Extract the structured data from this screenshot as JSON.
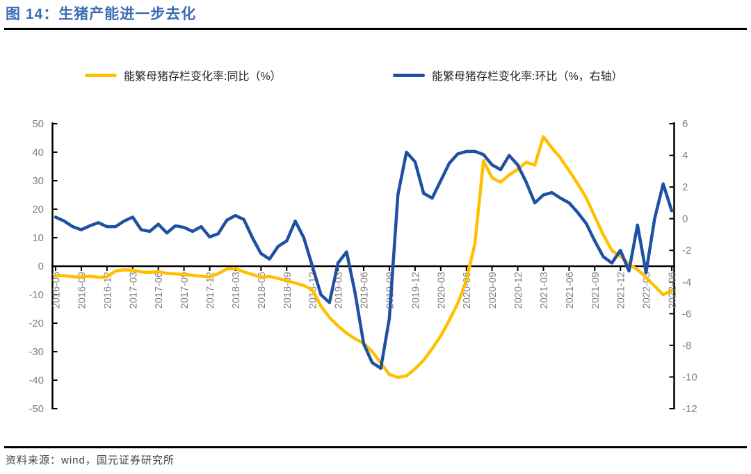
{
  "header": {
    "title": "图 14：生猪产能进一步去化"
  },
  "footer": {
    "source": "资料来源：wind，国元证券研究所"
  },
  "colors": {
    "title_blue": "#3C6CB4",
    "axis_text": "#7F7F7F",
    "axis_line": "#000000",
    "legend_text": "#262626"
  },
  "chart_data": {
    "type": "line",
    "title": "生猪产能进一步去化",
    "grid": false,
    "legend_position": "top",
    "x_months": [
      "2016-06",
      "2016-07",
      "2016-08",
      "2016-09",
      "2016-10",
      "2016-11",
      "2016-12",
      "2017-01",
      "2017-02",
      "2017-03",
      "2017-04",
      "2017-05",
      "2017-06",
      "2017-07",
      "2017-08",
      "2017-09",
      "2017-10",
      "2017-11",
      "2017-12",
      "2018-01",
      "2018-02",
      "2018-03",
      "2018-04",
      "2018-05",
      "2018-06",
      "2018-07",
      "2018-08",
      "2018-09",
      "2018-10",
      "2018-11",
      "2018-12",
      "2019-01",
      "2019-02",
      "2019-03",
      "2019-04",
      "2019-05",
      "2019-06",
      "2019-07",
      "2019-08",
      "2019-09",
      "2019-10",
      "2019-11",
      "2019-12",
      "2020-01",
      "2020-02",
      "2020-03",
      "2020-04",
      "2020-05",
      "2020-06",
      "2020-07",
      "2020-08",
      "2020-09",
      "2020-10",
      "2020-11",
      "2020-12",
      "2021-01",
      "2021-02",
      "2021-03",
      "2021-04",
      "2021-05",
      "2021-06",
      "2021-07",
      "2021-08",
      "2021-09",
      "2021-10",
      "2021-11",
      "2021-12",
      "2022-01",
      "2022-02",
      "2022-03",
      "2022-04",
      "2022-05",
      "2022-06"
    ],
    "x_tick_labels": [
      "2016-06",
      "2016-09",
      "2016-12",
      "2017-03",
      "2017-06",
      "2017-09",
      "2017-12",
      "2018-03",
      "2018-06",
      "2018-09",
      "2018-12",
      "2019-03",
      "2019-06",
      "2019-09",
      "2019-12",
      "2020-03",
      "2020-06",
      "2020-09",
      "2020-12",
      "2021-03",
      "2021-06",
      "2021-09",
      "2021-12",
      "2022-03",
      "2022-06"
    ],
    "left_axis": {
      "min": -50,
      "max": 50,
      "ticks": [
        50,
        40,
        30,
        20,
        10,
        0,
        -10,
        -20,
        -30,
        -40,
        -50
      ]
    },
    "right_axis": {
      "min": -12,
      "max": 6,
      "ticks": [
        6,
        4,
        2,
        0,
        -2,
        -4,
        -6,
        -8,
        -10,
        -12
      ]
    },
    "series": [
      {
        "name": "能繁母猪存栏变化率:同比（%）",
        "axis": "left",
        "color": "#FFC000",
        "values": [
          -3.4,
          -3.3,
          -3.7,
          -3.8,
          -3.5,
          -3.9,
          -3.7,
          -1.7,
          -1.3,
          -1.4,
          -2.0,
          -2.2,
          -1.9,
          -2.5,
          -2.7,
          -2.9,
          -3.2,
          -3.5,
          -3.8,
          -2.6,
          -1.0,
          -0.8,
          -2.0,
          -2.9,
          -3.9,
          -3.6,
          -4.3,
          -5.1,
          -5.9,
          -6.8,
          -8.3,
          -14.0,
          -18.0,
          -21.0,
          -23.5,
          -25.5,
          -27.0,
          -30.0,
          -34.0,
          -38.0,
          -39.0,
          -38.5,
          -36.0,
          -33.0,
          -29.0,
          -24.5,
          -19.0,
          -13.0,
          -5.0,
          8.0,
          37.0,
          31.0,
          29.5,
          32.0,
          34.0,
          36.5,
          35.5,
          45.5,
          41.5,
          38.0,
          33.5,
          29.0,
          24.0,
          17.5,
          11.0,
          5.5,
          3.5,
          0.7,
          -1.2,
          -4.0,
          -7.0,
          -10.0,
          -8.5
        ]
      },
      {
        "name": "能繁母猪存栏变化率:环比（%，右轴）",
        "axis": "right",
        "color": "#1F51A2",
        "values": [
          0.1,
          -0.15,
          -0.5,
          -0.7,
          -0.45,
          -0.25,
          -0.5,
          -0.5,
          -0.15,
          0.1,
          -0.7,
          -0.8,
          -0.35,
          -0.9,
          -0.45,
          -0.55,
          -0.8,
          -0.5,
          -1.15,
          -0.95,
          -0.1,
          0.2,
          -0.05,
          -1.2,
          -2.2,
          -2.55,
          -1.75,
          -1.4,
          -0.15,
          -1.2,
          -3.0,
          -4.8,
          -5.3,
          -2.8,
          -2.1,
          -4.7,
          -7.9,
          -9.1,
          -9.45,
          -6.3,
          1.5,
          4.2,
          3.6,
          1.6,
          1.3,
          2.4,
          3.5,
          4.1,
          4.25,
          4.25,
          4.05,
          3.4,
          3.1,
          4.0,
          3.4,
          2.3,
          1.0,
          1.5,
          1.65,
          1.3,
          1.0,
          0.4,
          -0.3,
          -1.4,
          -2.4,
          -2.8,
          -2.0,
          -3.3,
          -0.4,
          -3.4,
          0.0,
          2.2,
          0.5
        ]
      }
    ]
  }
}
